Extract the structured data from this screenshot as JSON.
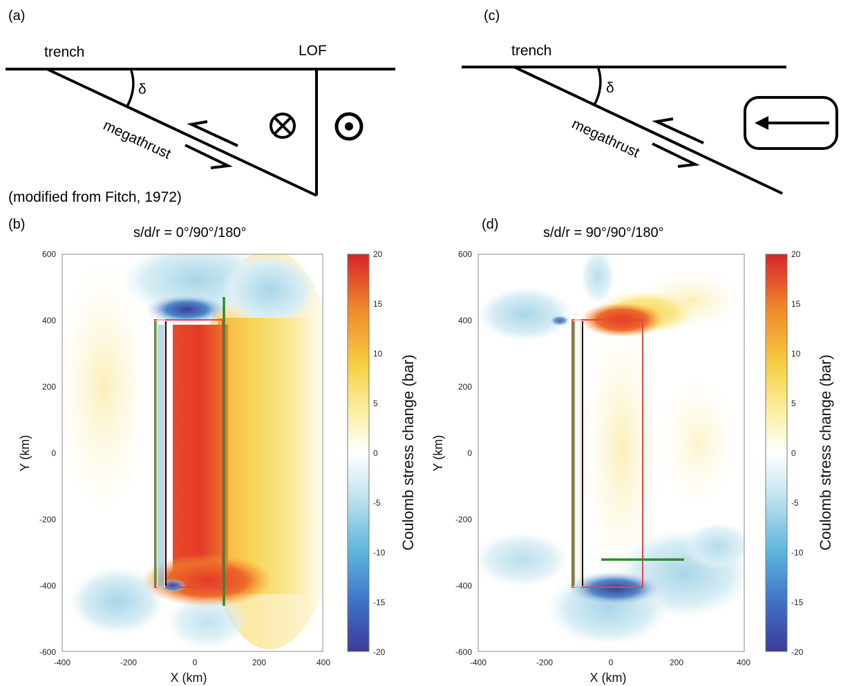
{
  "panels": {
    "a": {
      "label": "(a)",
      "trench": "trench",
      "lof": "LOF",
      "delta": "δ",
      "megathrust": "megathrust",
      "credit": "(modified from Fitch, 1972)"
    },
    "c": {
      "label": "(c)",
      "trench": "trench",
      "delta": "δ",
      "megathrust": "megathrust"
    },
    "b": {
      "label": "(b)",
      "title": "s/d/r = 0°/90°/180°",
      "xlabel": "X (km)",
      "ylabel": "Y (km)",
      "colorbar_label": "Coulomb stress change (bar)"
    },
    "d": {
      "label": "(d)",
      "title": "s/d/r = 90°/90°/180°",
      "xlabel": "X (km)",
      "ylabel": "Y (km)",
      "colorbar_label": "Coulomb stress change (bar)"
    }
  },
  "chart_data": [
    {
      "type": "heatmap",
      "title": "s/d/r = 0°/90°/180°",
      "xlabel": "X (km)",
      "ylabel": "Y (km)",
      "xlim": [
        -400,
        400
      ],
      "ylim": [
        -600,
        600
      ],
      "xticks": [
        -400,
        -200,
        0,
        200,
        400
      ],
      "yticks": [
        600,
        400,
        200,
        0,
        -200,
        -400,
        -600
      ],
      "colorbar": {
        "label": "Coulomb stress change (bar)",
        "range": [
          -20,
          20
        ],
        "ticks": [
          20,
          15,
          10,
          5,
          0,
          -5,
          -10,
          -15,
          -20
        ]
      },
      "fault_outline": [
        [
          -120,
          400
        ],
        [
          90,
          400
        ],
        [
          90,
          -400
        ],
        [
          -120,
          -400
        ]
      ],
      "receiver_fault": [
        [
          90,
          470
        ],
        [
          90,
          -460
        ]
      ]
    },
    {
      "type": "heatmap",
      "title": "s/d/r = 90°/90°/180°",
      "xlabel": "X (km)",
      "ylabel": "Y (km)",
      "xlim": [
        -400,
        400
      ],
      "ylim": [
        -600,
        600
      ],
      "xticks": [
        -400,
        -200,
        0,
        200,
        400
      ],
      "yticks": [
        600,
        400,
        200,
        0,
        -200,
        -400,
        -600
      ],
      "colorbar": {
        "label": "Coulomb stress change (bar)",
        "range": [
          -20,
          20
        ],
        "ticks": [
          20,
          15,
          10,
          5,
          0,
          -5,
          -10,
          -15,
          -20
        ]
      },
      "fault_outline": [
        [
          -120,
          400
        ],
        [
          90,
          400
        ],
        [
          90,
          -400
        ],
        [
          -120,
          -400
        ]
      ],
      "receiver_fault": [
        [
          -30,
          -320
        ],
        [
          220,
          -320
        ]
      ]
    }
  ]
}
